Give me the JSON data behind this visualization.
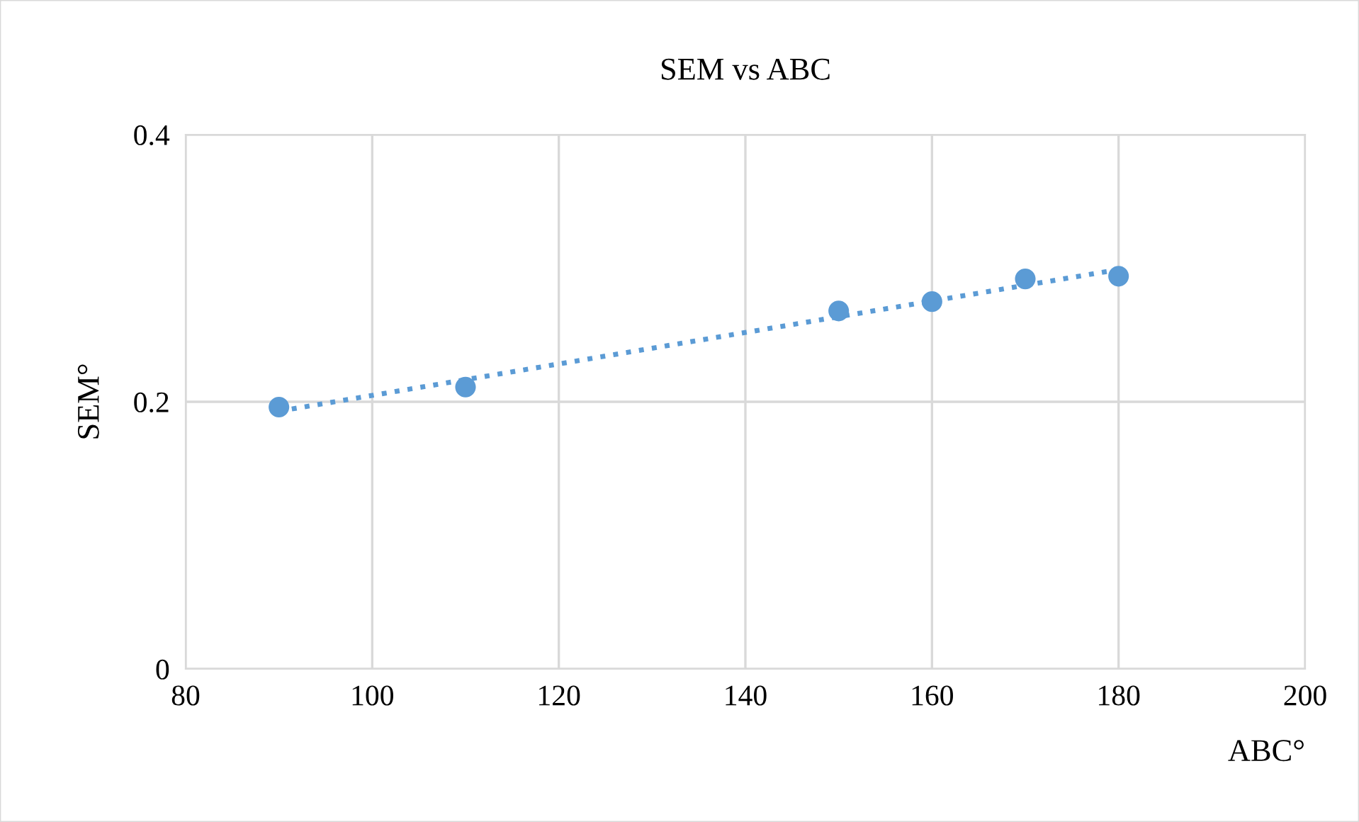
{
  "chart_data": {
    "type": "scatter",
    "title": "SEM vs ABC",
    "xlabel": "ABC°",
    "ylabel": "SEM°",
    "x": [
      90,
      110,
      150,
      160,
      170,
      180
    ],
    "series": [
      {
        "color": "#5b9bd5",
        "values": [
          0.196,
          0.211,
          0.268,
          0.275,
          0.292,
          0.294
        ],
        "marker": "circle"
      },
      {
        "type": "line",
        "color": "#5b9bd5",
        "x": [
          90,
          180
        ],
        "values": [
          0.193,
          0.299
        ],
        "line_style": "dotted",
        "marker": "none"
      }
    ],
    "xlim": [
      80,
      200
    ],
    "xticks": [
      80,
      100,
      120,
      140,
      160,
      180,
      200
    ],
    "ylim": [
      0,
      0.4
    ],
    "yticks": [
      0,
      0.2,
      0.4
    ],
    "grid": true,
    "legend": false
  }
}
